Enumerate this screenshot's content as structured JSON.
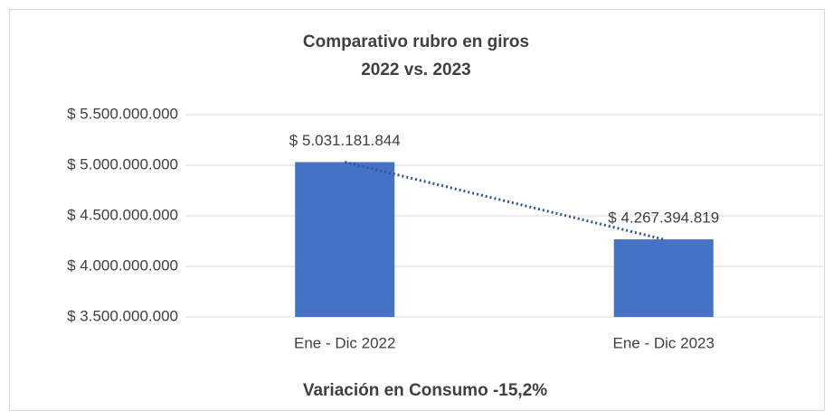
{
  "chart_data": {
    "type": "bar",
    "title": [
      "Comparativo rubro en giros",
      "2022 vs. 2023"
    ],
    "x_label": "Variación en Consumo -15,2%",
    "categories": [
      "Ene - Dic 2022",
      "Ene - Dic 2023"
    ],
    "values": [
      5031181844,
      4267394819
    ],
    "value_labels": [
      "$ 5.031.181.844",
      "$ 4.267.394.819"
    ],
    "color": "#4472c4",
    "trendline": true,
    "ylim": [
      3500000000,
      5500000000
    ],
    "yticks": [
      {
        "value": 3500000000,
        "label": "$ 3.500.000.000"
      },
      {
        "value": 4000000000,
        "label": "$ 4.000.000.000"
      },
      {
        "value": 4500000000,
        "label": "$ 4.500.000.000"
      },
      {
        "value": 5000000000,
        "label": "$ 5.000.000.000"
      },
      {
        "value": 5500000000,
        "label": "$ 5.500.000.000"
      }
    ],
    "grid": true
  }
}
